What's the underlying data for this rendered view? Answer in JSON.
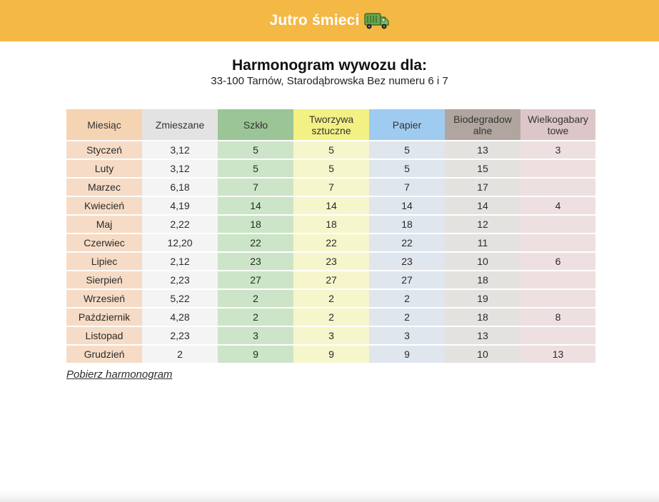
{
  "header": {
    "brand": "Jutro śmieci",
    "icon": "truck-icon"
  },
  "main": {
    "title": "Harmonogram wywozu dla:",
    "address": "33-100 Tarnów, Starodąbrowska Bez numeru 6 i 7",
    "download_label": "Pobierz harmonogram"
  },
  "table": {
    "headers": [
      "Miesiąc",
      "Zmieszane",
      "Szkło",
      "Tworzywa sztuczne",
      "Papier",
      "Biodegradowalne",
      "Wielkogabarytowe"
    ],
    "header_lines": [
      [
        "Miesiąc"
      ],
      [
        "Zmieszane"
      ],
      [
        "Szkło"
      ],
      [
        "Tworzywa",
        "sztuczne"
      ],
      [
        "Papier"
      ],
      [
        "Biodegradow",
        "alne"
      ],
      [
        "Wielkogabary",
        "towe"
      ]
    ],
    "rows": [
      [
        "Styczeń",
        "3,12",
        "5",
        "5",
        "5",
        "13",
        "3"
      ],
      [
        "Luty",
        "3,12",
        "5",
        "5",
        "5",
        "15",
        ""
      ],
      [
        "Marzec",
        "6,18",
        "7",
        "7",
        "7",
        "17",
        ""
      ],
      [
        "Kwiecień",
        "4,19",
        "14",
        "14",
        "14",
        "14",
        "4"
      ],
      [
        "Maj",
        "2,22",
        "18",
        "18",
        "18",
        "12",
        ""
      ],
      [
        "Czerwiec",
        "12,20",
        "22",
        "22",
        "22",
        "11",
        ""
      ],
      [
        "Lipiec",
        "2,12",
        "23",
        "23",
        "23",
        "10",
        "6"
      ],
      [
        "Sierpień",
        "2,23",
        "27",
        "27",
        "27",
        "18",
        ""
      ],
      [
        "Wrzesień",
        "5,22",
        "2",
        "2",
        "2",
        "19",
        ""
      ],
      [
        "Październik",
        "4,28",
        "2",
        "2",
        "2",
        "18",
        "8"
      ],
      [
        "Listopad",
        "2,23",
        "3",
        "3",
        "3",
        "13",
        ""
      ],
      [
        "Grudzień",
        "2",
        "9",
        "9",
        "9",
        "10",
        "13"
      ]
    ]
  },
  "colors": {
    "header_bg": "#f4b844",
    "month": "#f6dcc6",
    "mixed": "#f4f4f4",
    "glass": "#cce4c7",
    "plastic": "#f6f6cc",
    "paper": "#e0e6ee",
    "bio": "#e4e2df",
    "bulky": "#eee0e0"
  }
}
